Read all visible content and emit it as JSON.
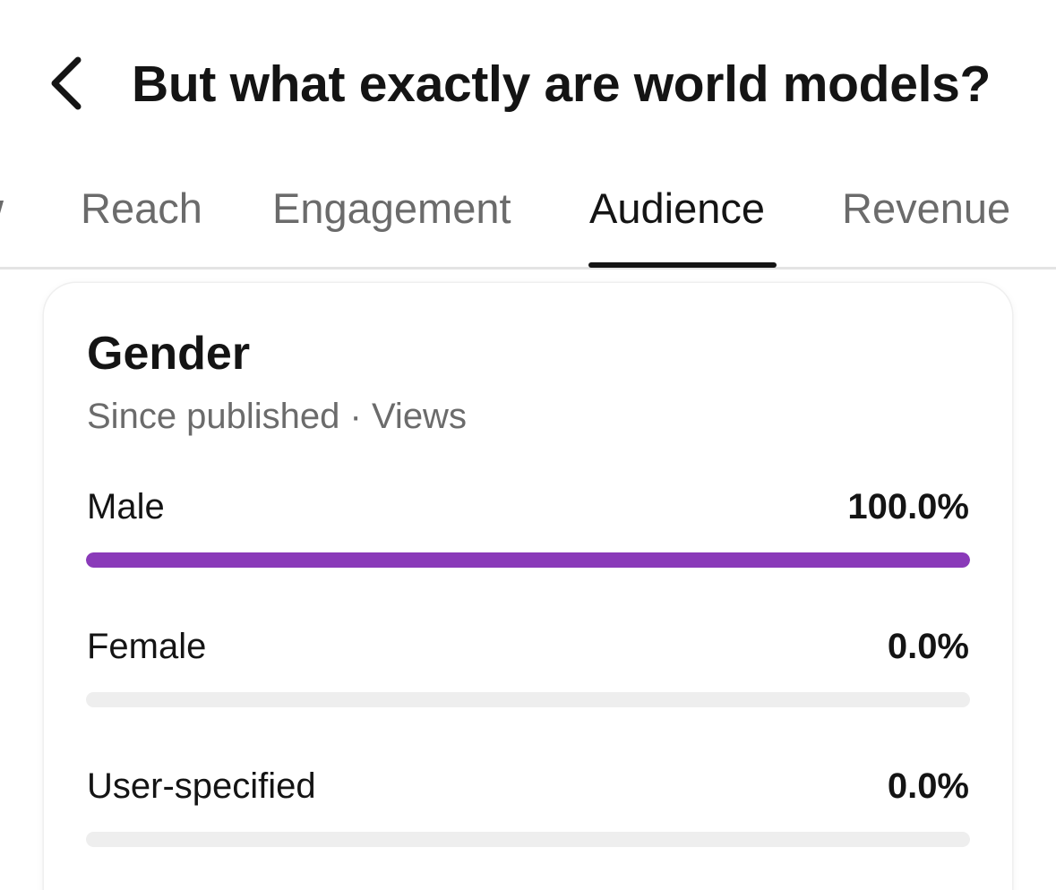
{
  "header": {
    "title": "But what exactly are world models?",
    "back_icon": "chevron-left-icon"
  },
  "tabs": [
    {
      "label": "w",
      "active": false
    },
    {
      "label": "Reach",
      "active": false
    },
    {
      "label": "Engagement",
      "active": false
    },
    {
      "label": "Audience",
      "active": true
    },
    {
      "label": "Revenue",
      "active": false
    }
  ],
  "card": {
    "title": "Gender",
    "subtitle": "Since published · Views",
    "rows": [
      {
        "label": "Male",
        "value": "100.0%",
        "fraction": 1.0
      },
      {
        "label": "Female",
        "value": "0.0%",
        "fraction": 0.0
      },
      {
        "label": "User-specified",
        "value": "0.0%",
        "fraction": 0.0
      }
    ]
  },
  "colors": {
    "bar_fill": "#8a3ab9",
    "bar_track": "#eeeeee"
  }
}
